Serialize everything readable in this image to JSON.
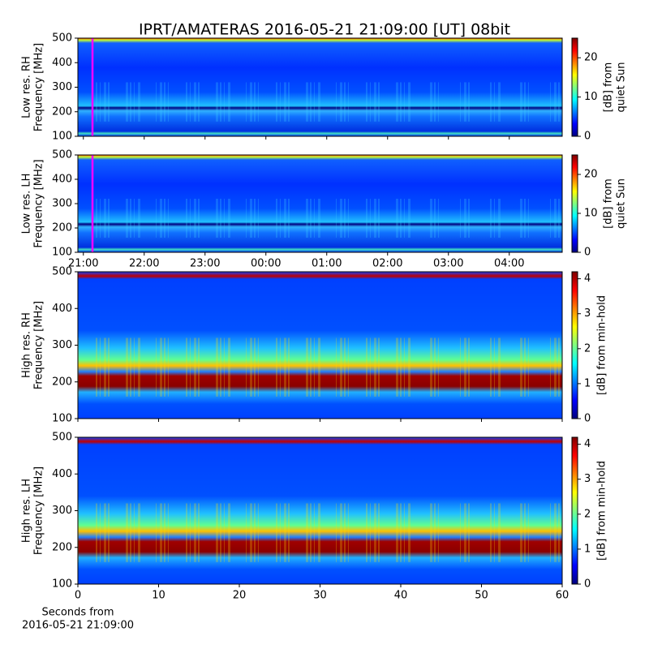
{
  "title": "IPRT/AMATERAS 2016-05-21 21:09:00 [UT]   08bit",
  "chart_data": [
    {
      "type": "heatmap",
      "ylabel": [
        "Low res. RH",
        "Frequency [MHz]"
      ],
      "xlim": [
        20.91,
        28.87
      ],
      "xticks": [
        21,
        22,
        23,
        24,
        25,
        26,
        27,
        28
      ],
      "xticklabels": false,
      "ylim": [
        100,
        500
      ],
      "yticks": [
        100,
        200,
        300,
        400,
        500
      ],
      "markers": [
        {
          "x": 21.15,
          "color": "#ff00ff"
        }
      ],
      "colorbar": {
        "label": [
          "[dB] from",
          "quiet Sun"
        ],
        "lim": [
          0,
          25
        ],
        "ticks": [
          0,
          10,
          20
        ],
        "colormap": "jet"
      }
    },
    {
      "type": "heatmap",
      "ylabel": [
        "Low res. LH",
        "Frequency [MHz]"
      ],
      "xlim": [
        20.91,
        28.87
      ],
      "xticks": [
        {
          "value": 21,
          "label": "21:00"
        },
        {
          "value": 22,
          "label": "22:00"
        },
        {
          "value": 23,
          "label": "23:00"
        },
        {
          "value": 24,
          "label": "00:00"
        },
        {
          "value": 25,
          "label": "01:00"
        },
        {
          "value": 26,
          "label": "02:00"
        },
        {
          "value": 27,
          "label": "03:00"
        },
        {
          "value": 28,
          "label": "04:00"
        }
      ],
      "xticklabels": true,
      "ylim": [
        100,
        500
      ],
      "yticks": [
        100,
        200,
        300,
        400,
        500
      ],
      "markers": [
        {
          "x": 21.15,
          "color": "#ff00ff"
        }
      ],
      "colorbar": {
        "label": [
          "[dB] from",
          "quiet Sun"
        ],
        "lim": [
          0,
          25
        ],
        "ticks": [
          0,
          10,
          20
        ],
        "colormap": "jet"
      }
    },
    {
      "type": "heatmap",
      "ylabel": [
        "High res. RH",
        "Frequency [MHz]"
      ],
      "xlim": [
        0,
        60
      ],
      "xticks": [
        0,
        10,
        20,
        30,
        40,
        50,
        60
      ],
      "xticklabels": false,
      "ylim": [
        100,
        500
      ],
      "yticks": [
        100,
        200,
        300,
        400,
        500
      ],
      "colorbar": {
        "label": [
          "[dB] from min-hold"
        ],
        "lim": [
          0,
          4.2
        ],
        "ticks": [
          0,
          1,
          2,
          3,
          4
        ],
        "colormap": "jet"
      }
    },
    {
      "type": "heatmap",
      "ylabel": [
        "High res. LH",
        "Frequency [MHz]"
      ],
      "xlim": [
        0,
        60
      ],
      "xticks": [
        0,
        10,
        20,
        30,
        40,
        50,
        60
      ],
      "xticklabels": true,
      "xlabel": [
        "Seconds from",
        "2016-05-21 21:09:00"
      ],
      "ylim": [
        100,
        500
      ],
      "yticks": [
        100,
        200,
        300,
        400,
        500
      ],
      "colorbar": {
        "label": [
          "[dB] from min-hold"
        ],
        "lim": [
          0,
          4.2
        ],
        "ticks": [
          0,
          1,
          2,
          3,
          4
        ],
        "colormap": "jet"
      }
    }
  ]
}
